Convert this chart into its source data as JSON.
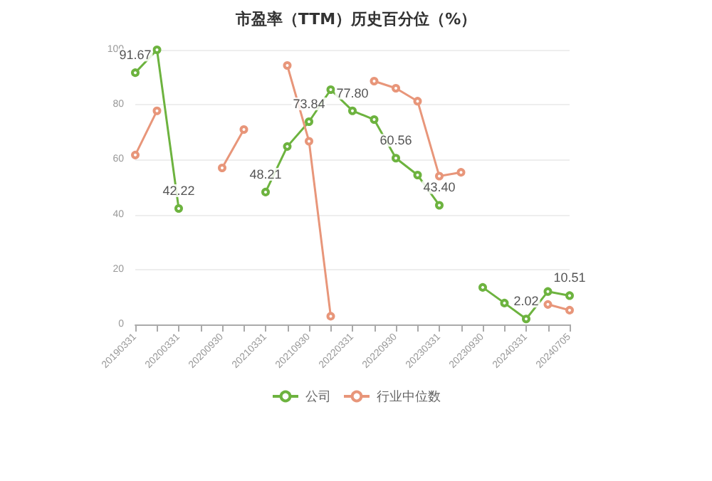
{
  "chart_data": {
    "type": "line",
    "title": "市盈率（TTM）历史百分位（%）",
    "categories": [
      "20190331",
      null,
      "20200331",
      null,
      "20200930",
      null,
      "20210331",
      null,
      "20210930",
      null,
      "20220331",
      null,
      "20220930",
      null,
      "20230331",
      null,
      "20230930",
      null,
      "20240331",
      null,
      "20240705"
    ],
    "series": [
      {
        "name": "公司",
        "color": "#6db33f",
        "values": [
          91.67,
          100,
          42.22,
          null,
          null,
          null,
          48.21,
          64.8,
          73.84,
          85.5,
          77.8,
          74.6,
          60.56,
          54.4,
          43.4,
          null,
          13.5,
          7.8,
          2.02,
          12,
          10.51
        ],
        "value_labels": [
          "91.67",
          null,
          "42.22",
          null,
          null,
          null,
          "48.21",
          null,
          "73.84",
          null,
          "77.80",
          null,
          "60.56",
          null,
          "43.40",
          null,
          null,
          null,
          "2.02",
          null,
          "10.51"
        ]
      },
      {
        "name": "行业中位数",
        "color": "#e8967a",
        "values": [
          61.7,
          77.8,
          null,
          null,
          57,
          71,
          null,
          94.3,
          66.7,
          3,
          null,
          88.6,
          86,
          81.3,
          54,
          55.4,
          null,
          null,
          null,
          7.3,
          5.2
        ]
      }
    ],
    "ylim": [
      0,
      100
    ],
    "yticks": [
      0,
      20,
      40,
      60,
      80,
      100
    ],
    "grid": "y",
    "legend": "bottom",
    "marker": "circle",
    "line_style": "solid"
  }
}
